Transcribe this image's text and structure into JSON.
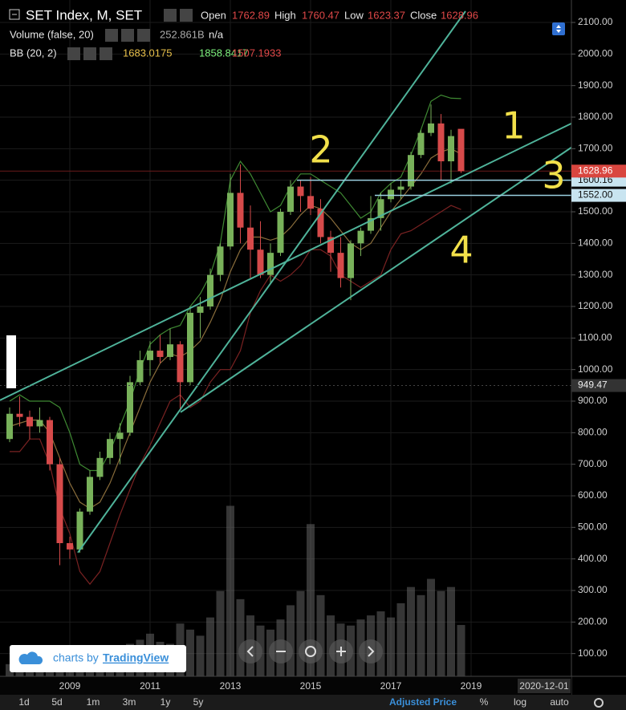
{
  "header": {
    "symbol": "SET Index, M, SET",
    "open_label": "Open",
    "high_label": "High",
    "low_label": "Low",
    "close_label": "Close",
    "volume_label": "Volume (false, 20)",
    "volume_value": "252.861B",
    "volume_na": "n/a",
    "bb_label": "BB (20, 2)"
  },
  "chart_data": {
    "type": "candlestick",
    "x": [
      2007.5,
      2007.75,
      2008,
      2008.25,
      2008.5,
      2008.75,
      2009,
      2009.25,
      2009.5,
      2009.75,
      2010,
      2010.25,
      2010.5,
      2010.75,
      2011,
      2011.25,
      2011.5,
      2011.75,
      2012,
      2012.25,
      2012.5,
      2012.75,
      2013,
      2013.25,
      2013.5,
      2013.75,
      2014,
      2014.25,
      2014.5,
      2014.75,
      2015,
      2015.25,
      2015.5,
      2015.75,
      2016,
      2016.25,
      2016.5,
      2016.75,
      2017,
      2017.25,
      2017.5,
      2017.75,
      2018,
      2018.25,
      2018.5,
      2018.75
    ],
    "open": [
      780,
      860,
      850,
      820,
      840,
      700,
      450,
      430,
      550,
      660,
      720,
      780,
      800,
      960,
      1030,
      1060,
      1040,
      1080,
      960,
      1180,
      1200,
      1300,
      1390,
      1560,
      1450,
      1380,
      1300,
      1370,
      1500,
      1580,
      1550,
      1510,
      1420,
      1370,
      1290,
      1400,
      1440,
      1480,
      1540,
      1570,
      1580,
      1680,
      1750,
      1780,
      1660,
      1762.89
    ],
    "high": [
      880,
      915,
      870,
      880,
      850,
      720,
      470,
      560,
      680,
      740,
      800,
      830,
      980,
      1060,
      1090,
      1110,
      1130,
      1090,
      1200,
      1230,
      1320,
      1400,
      1620,
      1650,
      1520,
      1470,
      1400,
      1510,
      1600,
      1600,
      1610,
      1540,
      1440,
      1420,
      1410,
      1450,
      1550,
      1560,
      1590,
      1600,
      1690,
      1760,
      1840,
      1810,
      1760,
      1760.47
    ],
    "low": [
      770,
      820,
      780,
      800,
      680,
      380,
      400,
      420,
      540,
      650,
      700,
      700,
      790,
      950,
      980,
      1020,
      1030,
      870,
      950,
      1100,
      1190,
      1280,
      1380,
      1400,
      1290,
      1290,
      1270,
      1360,
      1490,
      1500,
      1490,
      1400,
      1310,
      1260,
      1220,
      1360,
      1430,
      1440,
      1530,
      1540,
      1570,
      1670,
      1740,
      1600,
      1590,
      1623.37
    ],
    "close": [
      860,
      850,
      820,
      840,
      700,
      450,
      430,
      550,
      660,
      720,
      780,
      800,
      960,
      1030,
      1060,
      1040,
      1080,
      960,
      1180,
      1200,
      1300,
      1390,
      1560,
      1450,
      1380,
      1300,
      1370,
      1500,
      1580,
      1550,
      1510,
      1420,
      1370,
      1290,
      1400,
      1440,
      1480,
      1540,
      1570,
      1580,
      1680,
      1750,
      1780,
      1660,
      1740,
      1628.96
    ],
    "volume": [
      60,
      80,
      70,
      90,
      110,
      150,
      140,
      120,
      110,
      100,
      110,
      140,
      160,
      180,
      210,
      170,
      160,
      260,
      230,
      200,
      290,
      420,
      840,
      380,
      300,
      250,
      230,
      280,
      350,
      420,
      750,
      400,
      300,
      260,
      250,
      280,
      300,
      320,
      290,
      360,
      440,
      400,
      480,
      420,
      440,
      252.861
    ],
    "volume_ylim": [
      0,
      1000
    ],
    "bb": {
      "upper": [
        900,
        920,
        900,
        900,
        900,
        880,
        800,
        700,
        680,
        680,
        740,
        820,
        900,
        1000,
        1080,
        1110,
        1130,
        1140,
        1200,
        1240,
        1300,
        1400,
        1600,
        1660,
        1620,
        1560,
        1500,
        1520,
        1580,
        1620,
        1620,
        1600,
        1580,
        1560,
        1520,
        1480,
        1500,
        1560,
        1590,
        1610,
        1680,
        1760,
        1850,
        1870,
        1860,
        1858.8417
      ],
      "middle": [
        820,
        830,
        840,
        840,
        800,
        720,
        640,
        580,
        560,
        580,
        640,
        720,
        800,
        880,
        960,
        1020,
        1050,
        1040,
        1060,
        1090,
        1150,
        1220,
        1310,
        1380,
        1420,
        1420,
        1410,
        1420,
        1450,
        1490,
        1520,
        1510,
        1480,
        1440,
        1400,
        1380,
        1400,
        1450,
        1500,
        1540,
        1580,
        1620,
        1670,
        1690,
        1700,
        1683.0175
      ],
      "lower": [
        740,
        740,
        780,
        780,
        700,
        560,
        480,
        360,
        320,
        360,
        450,
        540,
        620,
        700,
        760,
        830,
        900,
        920,
        880,
        900,
        960,
        1000,
        1000,
        1060,
        1180,
        1250,
        1300,
        1280,
        1300,
        1330,
        1380,
        1380,
        1360,
        1300,
        1280,
        1260,
        1280,
        1300,
        1380,
        1430,
        1440,
        1460,
        1480,
        1500,
        1520,
        1507.1933
      ]
    },
    "up_color": "#78b15a",
    "down_color": "#d64a4a",
    "bb_colors": {
      "upper": "#3f8a33",
      "middle": "#8a6d3b",
      "lower": "#7a2222"
    },
    "trend_color": "#4fb39a",
    "xlim": [
      2007.26,
      2021.5
    ],
    "ylim": [
      69.7,
      2135.6
    ],
    "xticks": [
      2009,
      2011,
      2013,
      2015,
      2017,
      2019
    ],
    "yticks": [
      100,
      200,
      300,
      400,
      500,
      600,
      700,
      800,
      900,
      1000,
      1100,
      1200,
      1300,
      1400,
      1500,
      1600,
      1700,
      1800,
      1900,
      2000,
      2100
    ],
    "yticks_labels": [
      "100.00",
      "200.00",
      "300.00",
      "400.00",
      "500.00",
      "600.00",
      "700.00",
      "800.00",
      "900.00",
      "1000.00",
      "1100.00",
      "1200.00",
      "1300.00",
      "1400.00",
      "1500.00",
      "1600.00",
      "1700.00",
      "1800.00",
      "1900.00",
      "2000.00",
      "2100.00"
    ],
    "grid": true,
    "price_lines": [
      1600.16,
      {
        "value": 1552,
        "label": "1552.00"
      }
    ],
    "price_lines_start": [
      2014.66,
      2016.6
    ],
    "crosshair_price": 949.47,
    "trend_lines": [
      {
        "x": [
          2007.26,
          2021.5
        ],
        "y": [
          903,
          1780
        ]
      },
      {
        "x": [
          2009.2,
          2018.86
        ],
        "y": [
          420,
          2135.6
        ]
      },
      {
        "x": [
          2011.76,
          2021.5
        ],
        "y": [
          865,
          1704
        ]
      }
    ],
    "annotations": [
      "1",
      "2",
      "3",
      "4"
    ]
  },
  "toolbar": {
    "intervals": [
      "1d",
      "5d",
      "1m",
      "3m",
      "1y",
      "5y"
    ],
    "adjusted": "Adjusted Price",
    "percent": "%",
    "log": "log",
    "auto": "auto",
    "date": "2020-12-01"
  },
  "watermark": {
    "prefix": "charts by",
    "brand": "TradingView"
  }
}
